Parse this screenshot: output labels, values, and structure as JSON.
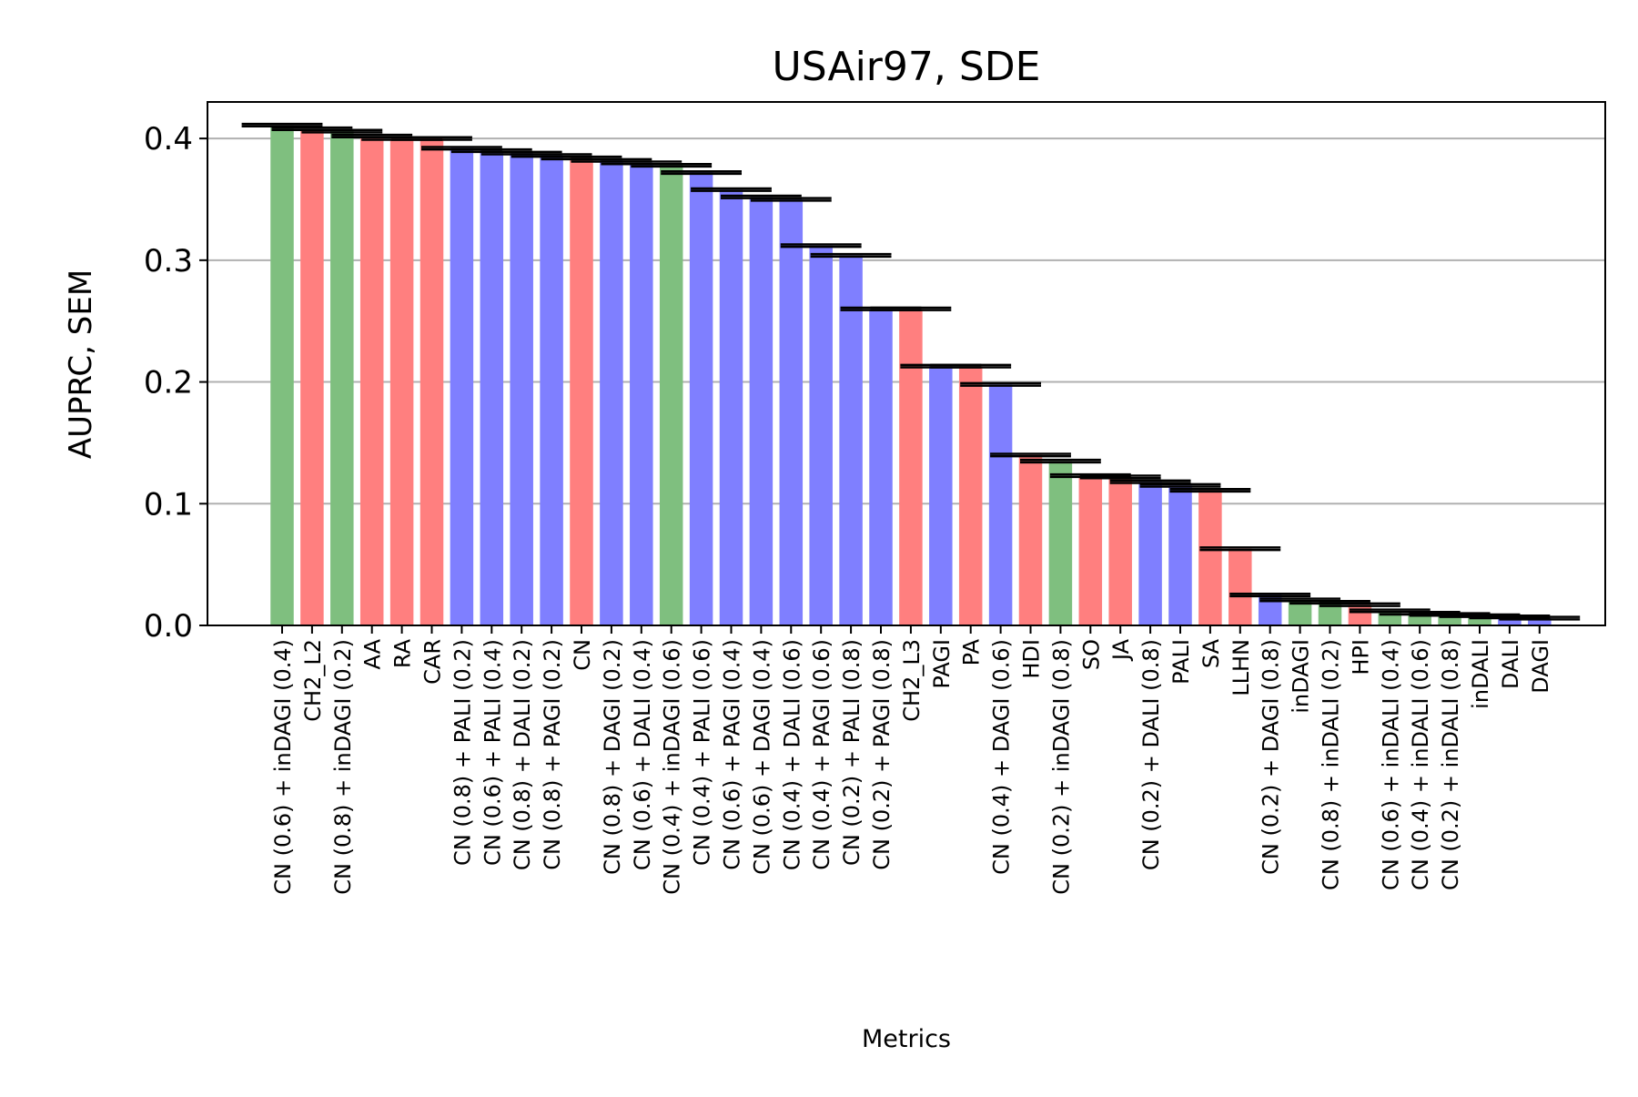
{
  "chart_data": {
    "type": "bar",
    "title": "USAir97, SDE",
    "xlabel": "Metrics",
    "ylabel": "AUPRC, SEM",
    "ylim": [
      0,
      0.43
    ],
    "yticks": [
      "0.0",
      "0.1",
      "0.2",
      "0.3",
      "0.4"
    ],
    "grid": "y",
    "colors": {
      "green": "#7fbf7f",
      "red": "#ff7f7f",
      "blue": "#7f7fff",
      "error": "#000000"
    },
    "categories": [
      "CN (0.6) + inDAGI (0.4)",
      "CH2_L2",
      "CN (0.8) + inDAGI (0.2)",
      "AA",
      "RA",
      "CAR",
      "CN (0.8) + PALI (0.2)",
      "CN (0.6) + PALI (0.4)",
      "CN (0.8) + DALI (0.2)",
      "CN (0.8) + PAGI (0.2)",
      "CN",
      "CN (0.8) + DAGI (0.2)",
      "CN (0.6) + DALI (0.4)",
      "CN (0.4) + inDAGI (0.6)",
      "CN (0.4) + PALI (0.6)",
      "CN (0.6) + PAGI (0.4)",
      "CN (0.6) + DAGI (0.4)",
      "CN (0.4) + DALI (0.6)",
      "CN (0.4) + PAGI (0.6)",
      "CN (0.2) + PALI (0.8)",
      "CN (0.2) + PAGI (0.8)",
      "CH2_L3",
      "PAGI",
      "PA",
      "CN (0.4) + DAGI (0.6)",
      "HDI",
      "CN (0.2) + inDAGI (0.8)",
      "SO",
      "JA",
      "CN (0.2) + DALI (0.8)",
      "PALI",
      "SA",
      "LLHN",
      "CN (0.2) + DAGI (0.8)",
      "inDAGI",
      "CN (0.8) + inDALI (0.2)",
      "HPI",
      "CN (0.6) + inDALI (0.4)",
      "CN (0.4) + inDALI (0.6)",
      "CN (0.2) + inDALI (0.8)",
      "inDALI",
      "DALI",
      "DAGI"
    ],
    "values": [
      0.411,
      0.408,
      0.406,
      0.402,
      0.4,
      0.4,
      0.392,
      0.39,
      0.388,
      0.386,
      0.384,
      0.382,
      0.38,
      0.378,
      0.372,
      0.358,
      0.352,
      0.35,
      0.312,
      0.304,
      0.26,
      0.26,
      0.213,
      0.213,
      0.198,
      0.14,
      0.135,
      0.123,
      0.122,
      0.118,
      0.115,
      0.111,
      0.063,
      0.025,
      0.021,
      0.019,
      0.017,
      0.012,
      0.01,
      0.009,
      0.008,
      0.007,
      0.006
    ],
    "errors": [
      0.001,
      0.001,
      0.001,
      0.001,
      0.001,
      0.001,
      0.001,
      0.001,
      0.001,
      0.001,
      0.001,
      0.001,
      0.001,
      0.001,
      0.001,
      0.001,
      0.001,
      0.001,
      0.001,
      0.001,
      0.001,
      0.001,
      0.001,
      0.001,
      0.001,
      0.001,
      0.001,
      0.001,
      0.001,
      0.001,
      0.001,
      0.001,
      0.001,
      0.001,
      0.001,
      0.001,
      0.001,
      0.001,
      0.001,
      0.001,
      0.001,
      0.001,
      0.001
    ],
    "bar_colors": [
      "green",
      "red",
      "green",
      "red",
      "red",
      "red",
      "blue",
      "blue",
      "blue",
      "blue",
      "red",
      "blue",
      "blue",
      "green",
      "blue",
      "blue",
      "blue",
      "blue",
      "blue",
      "blue",
      "blue",
      "red",
      "blue",
      "red",
      "blue",
      "red",
      "green",
      "red",
      "red",
      "blue",
      "blue",
      "red",
      "red",
      "blue",
      "green",
      "green",
      "red",
      "green",
      "green",
      "green",
      "green",
      "blue",
      "blue"
    ]
  }
}
